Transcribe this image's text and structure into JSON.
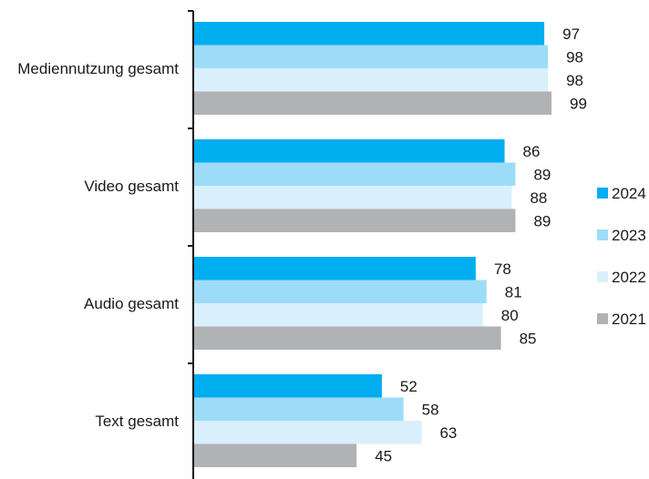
{
  "chart_data": {
    "type": "bar",
    "orientation": "horizontal",
    "categories": [
      "Mediennutzung gesamt",
      "Video gesamt",
      "Audio gesamt",
      "Text gesamt"
    ],
    "series": [
      {
        "name": "2024",
        "color": "#00aeef",
        "values": [
          97,
          86,
          78,
          52
        ]
      },
      {
        "name": "2023",
        "color": "#9ddcf9",
        "values": [
          98,
          89,
          81,
          58
        ]
      },
      {
        "name": "2022",
        "color": "#d9f0fc",
        "values": [
          98,
          88,
          80,
          63
        ]
      },
      {
        "name": "2021",
        "color": "#b1b2b4",
        "values": [
          99,
          89,
          85,
          45
        ]
      }
    ],
    "xlim": [
      0,
      100
    ],
    "grid": false,
    "legend_position": "right"
  }
}
